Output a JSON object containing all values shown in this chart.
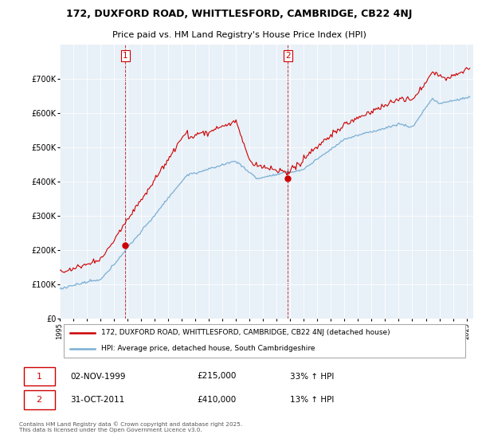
{
  "title1": "172, DUXFORD ROAD, WHITTLESFORD, CAMBRIDGE, CB22 4NJ",
  "title2": "Price paid vs. HM Land Registry's House Price Index (HPI)",
  "legend_line1": "172, DUXFORD ROAD, WHITTLESFORD, CAMBRIDGE, CB22 4NJ (detached house)",
  "legend_line2": "HPI: Average price, detached house, South Cambridgeshire",
  "annotation1_date": "02-NOV-1999",
  "annotation1_price": "£215,000",
  "annotation1_hpi": "33% ↑ HPI",
  "annotation2_date": "31-OCT-2011",
  "annotation2_price": "£410,000",
  "annotation2_hpi": "13% ↑ HPI",
  "footer": "Contains HM Land Registry data © Crown copyright and database right 2025.\nThis data is licensed under the Open Government Licence v3.0.",
  "property_color": "#cc0000",
  "hpi_color": "#7aafd4",
  "ylim": [
    0,
    800000
  ],
  "yticks": [
    0,
    100000,
    200000,
    300000,
    400000,
    500000,
    600000,
    700000
  ],
  "ytick_labels": [
    "£0",
    "£100K",
    "£200K",
    "£300K",
    "£400K",
    "£500K",
    "£600K",
    "£700K"
  ],
  "background_color": "#e8f0f8",
  "sale1_price": 215000,
  "sale2_price": 410000,
  "xstart_year": 1995,
  "xend_year": 2025
}
